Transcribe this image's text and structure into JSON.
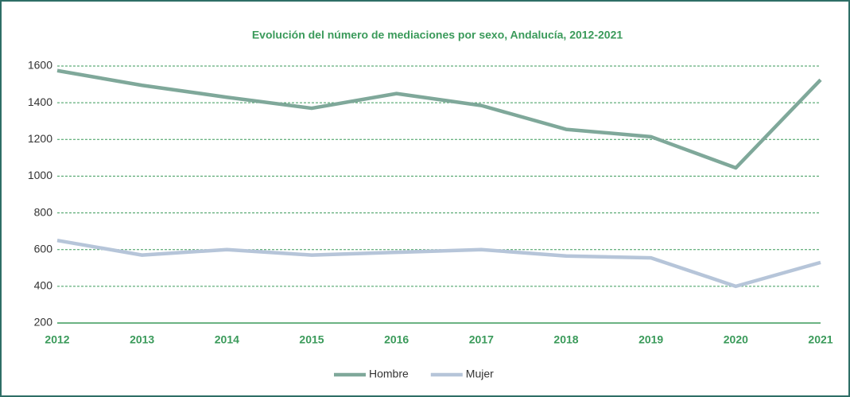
{
  "chart_data": {
    "type": "line",
    "title": "Evolución del número de mediaciones por sexo, Andalucía, 2012-2021",
    "categories": [
      "2012",
      "2013",
      "2014",
      "2015",
      "2016",
      "2017",
      "2018",
      "2019",
      "2020",
      "2021"
    ],
    "series": [
      {
        "name": "Hombre",
        "color": "#7fa89a",
        "values": [
          1575,
          1495,
          1430,
          1370,
          1450,
          1385,
          1255,
          1215,
          1045,
          1525
        ]
      },
      {
        "name": "Mujer",
        "color": "#b6c5d9",
        "values": [
          650,
          570,
          600,
          570,
          585,
          600,
          565,
          555,
          400,
          530
        ]
      }
    ],
    "ylim": [
      200,
      1600
    ],
    "yticks": [
      200,
      400,
      600,
      800,
      1000,
      1200,
      1400,
      1600
    ],
    "grid": true,
    "legend": "bottom"
  }
}
